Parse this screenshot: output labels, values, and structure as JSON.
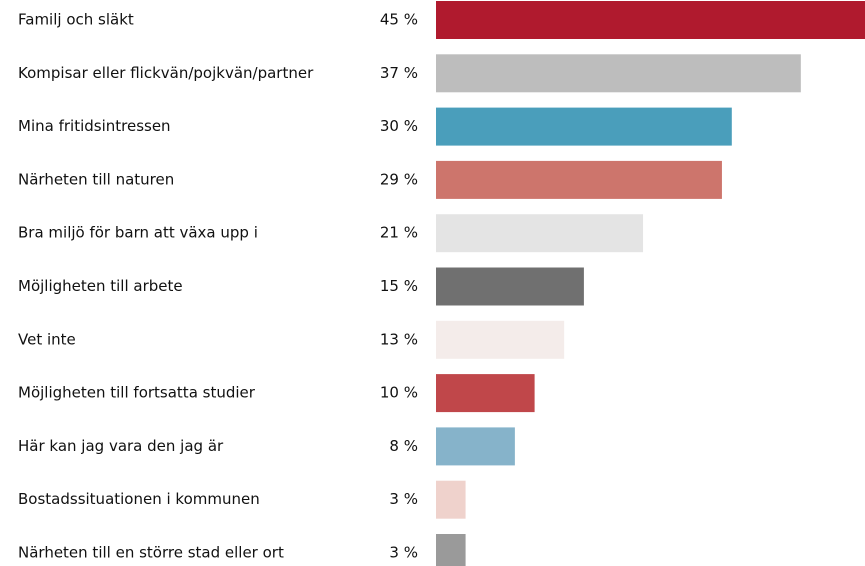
{
  "chart_data": {
    "type": "bar",
    "orientation": "horizontal",
    "categories": [
      "Familj och släkt",
      "Kompisar eller flickvän/pojkvän/partner",
      "Mina fritidsintressen",
      "Närheten till naturen",
      "Bra miljö för barn att växa upp i",
      "Möjligheten till arbete",
      "Vet inte",
      "Möjligheten till fortsatta studier",
      "Här kan jag vara den jag är",
      "Bostadssituationen i kommunen",
      "Närheten till en större stad eller ort"
    ],
    "values": [
      45,
      37,
      30,
      29,
      21,
      15,
      13,
      10,
      8,
      3,
      3
    ],
    "value_labels": [
      "45 %",
      "37 %",
      "30 %",
      "29 %",
      "21 %",
      "15 %",
      "13 %",
      "10 %",
      "8 %",
      "3 %",
      "3 %"
    ],
    "colors": [
      "#b01a2e",
      "#bdbdbd",
      "#4a9ebb",
      "#cd756c",
      "#e4e4e4",
      "#707070",
      "#f4ecea",
      "#c0474a",
      "#86b3ca",
      "#efd2cc",
      "#9a9a9a"
    ]
  }
}
